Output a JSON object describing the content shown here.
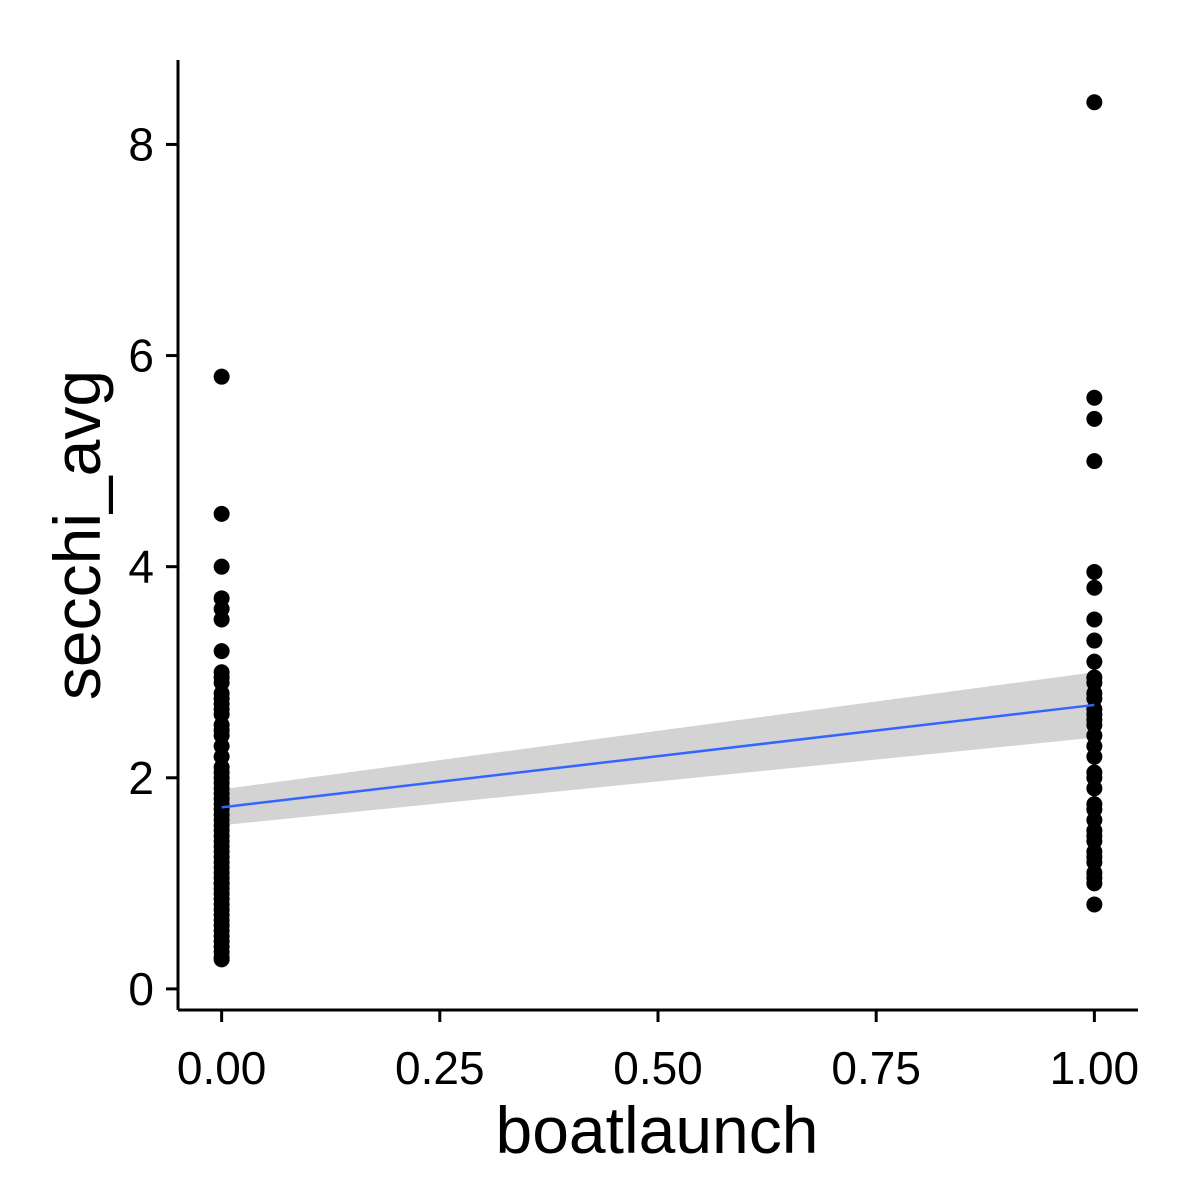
{
  "chart_data": {
    "type": "scatter",
    "title": "",
    "xlabel": "boatlaunch",
    "ylabel": "secchi_avg",
    "xlim": [
      -0.05,
      1.05
    ],
    "ylim": [
      -0.2,
      8.8
    ],
    "x_ticks": [
      0,
      0.25,
      0.5,
      0.75,
      1
    ],
    "x_tick_labels": [
      "0.00",
      "0.25",
      "0.50",
      "0.75",
      "1.00"
    ],
    "y_ticks": [
      0,
      2,
      4,
      6,
      8
    ],
    "y_tick_labels": [
      "0",
      "2",
      "4",
      "6",
      "8"
    ],
    "grid": false,
    "legend": "none",
    "series": [
      {
        "x": [
          0,
          0,
          0,
          0,
          0,
          0,
          0,
          0,
          0,
          0,
          0,
          0,
          0,
          0,
          0,
          0,
          0,
          0,
          0,
          0,
          0,
          0,
          0,
          0,
          0,
          0,
          0,
          0,
          0,
          0,
          0,
          0,
          0,
          0,
          0,
          0,
          0,
          0,
          0,
          0,
          0,
          0,
          0,
          0,
          0,
          0,
          0,
          0,
          0,
          0,
          0,
          0,
          0,
          0,
          0,
          0,
          0,
          0,
          0
        ],
        "y": [
          5.8,
          4.5,
          4.0,
          3.7,
          3.6,
          3.5,
          3.2,
          3.0,
          2.95,
          2.9,
          2.8,
          2.75,
          2.7,
          2.6,
          2.5,
          2.45,
          2.4,
          2.3,
          2.2,
          2.1,
          2.05,
          2.0,
          1.9,
          1.85,
          1.8,
          1.75,
          1.7,
          1.65,
          1.6,
          1.55,
          1.5,
          1.45,
          1.4,
          1.35,
          1.3,
          1.25,
          1.2,
          1.15,
          1.1,
          1.05,
          1.0,
          0.95,
          0.9,
          0.85,
          0.8,
          0.75,
          0.7,
          0.65,
          0.6,
          0.55,
          0.5,
          0.45,
          0.4,
          0.35,
          0.3,
          0.28,
          1.95,
          2.65,
          1.0
        ],
        "color": "#000000"
      },
      {
        "x": [
          1,
          1,
          1,
          1,
          1,
          1,
          1,
          1,
          1,
          1,
          1,
          1,
          1,
          1,
          1,
          1,
          1,
          1,
          1,
          1,
          1,
          1,
          1,
          1,
          1,
          1,
          1,
          1,
          1,
          1,
          1,
          1,
          1,
          1,
          1,
          1
        ],
        "y": [
          8.4,
          5.6,
          5.4,
          5.0,
          3.95,
          3.8,
          3.5,
          3.3,
          3.1,
          2.95,
          2.9,
          2.8,
          2.75,
          2.6,
          2.5,
          2.4,
          2.3,
          2.2,
          2.0,
          1.9,
          1.75,
          1.7,
          1.6,
          1.5,
          1.45,
          1.4,
          1.3,
          1.2,
          1.1,
          1.0,
          0.8,
          2.65,
          2.55,
          2.05,
          1.25,
          1.05
        ],
        "color": "#000000"
      }
    ],
    "fit": {
      "type": "linear",
      "x": [
        0,
        1
      ],
      "y": [
        1.72,
        2.69
      ],
      "ci_lower": [
        1.55,
        2.38
      ],
      "ci_upper": [
        1.89,
        3.0
      ],
      "line_color": "#3366FF",
      "band_color": "#D3D3D3"
    }
  }
}
